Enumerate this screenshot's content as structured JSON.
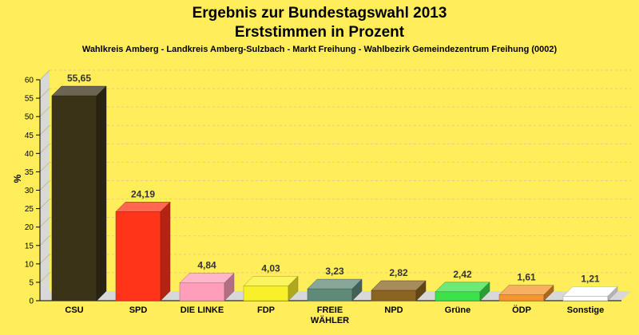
{
  "chart_data": {
    "type": "bar",
    "title": "Ergebnis zur Bundestagswahl 2013",
    "subtitle": "Erststimmen in Prozent",
    "caption": "Wahlkreis Amberg - Landkreis Amberg-Sulzbach - Markt Freihung - Wahlbezirk Gemeindezentrum Freihung (0002)",
    "ylabel": "%",
    "ylim": [
      0,
      60
    ],
    "yticks": [
      0,
      5,
      10,
      15,
      20,
      25,
      30,
      35,
      40,
      45,
      50,
      55,
      60
    ],
    "grid": true,
    "categories": [
      [
        "CSU"
      ],
      [
        "SPD"
      ],
      [
        "DIE LINKE"
      ],
      [
        "FDP"
      ],
      [
        "FREIE",
        "WÄHLER"
      ],
      [
        "NPD"
      ],
      [
        "Grüne"
      ],
      [
        "ÖDP"
      ],
      [
        "Sonstige"
      ]
    ],
    "values": [
      55.65,
      24.19,
      4.84,
      4.03,
      3.23,
      2.82,
      2.42,
      1.61,
      1.21
    ],
    "data_labels": [
      "55,65",
      "24,19",
      "4,84",
      "4,03",
      "3,23",
      "2,82",
      "2,42",
      "1,61",
      "1,21"
    ],
    "colors": [
      "#3A3317",
      "#FF3419",
      "#FF9EBA",
      "#F8F02A",
      "#5F8A78",
      "#8A6420",
      "#3CE24A",
      "#F4962E",
      "#FFFFFF"
    ]
  }
}
